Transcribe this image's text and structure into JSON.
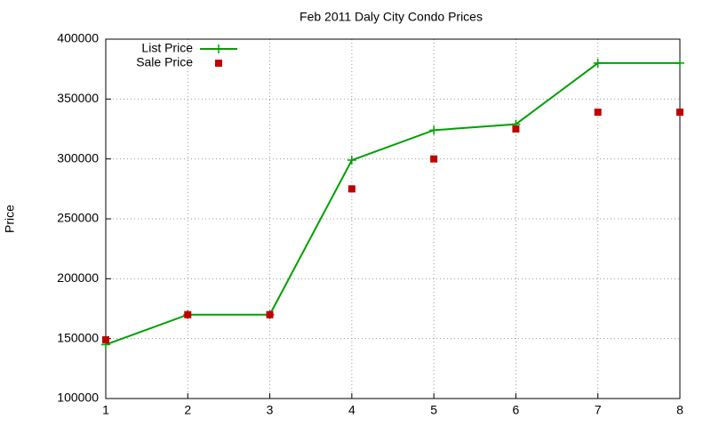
{
  "chart_data": {
    "type": "line",
    "title": "Feb 2011 Daly City Condo Prices",
    "y_label": "Price",
    "x": [
      1,
      2,
      3,
      4,
      5,
      6,
      7,
      8
    ],
    "series": [
      {
        "name": "List Price",
        "color": "#00a000",
        "style": "linespoints",
        "values": [
          145000,
          170000,
          170000,
          299000,
          324000,
          329000,
          380000,
          380000
        ]
      },
      {
        "name": "Sale Price",
        "color": "#c00000",
        "style": "points",
        "values": [
          149000,
          170000,
          170000,
          275000,
          300000,
          325000,
          339000,
          339000
        ]
      }
    ],
    "xlim": [
      1,
      8
    ],
    "xticks": [
      1,
      2,
      3,
      4,
      5,
      6,
      7,
      8
    ],
    "ylim": [
      100000,
      400000
    ],
    "yticks": [
      100000,
      150000,
      200000,
      250000,
      300000,
      350000,
      400000
    ],
    "grid": true,
    "legend": "top-left"
  }
}
